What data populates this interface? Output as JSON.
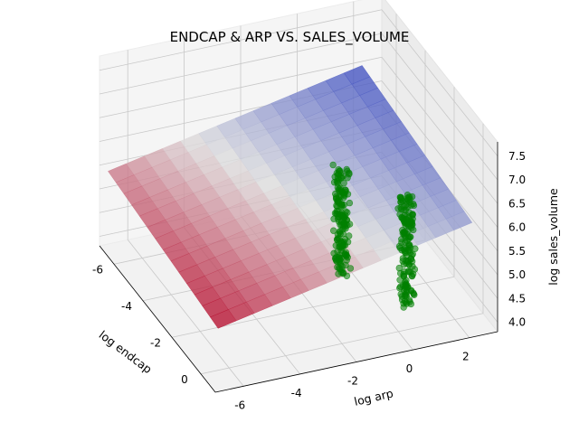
{
  "chart_data": {
    "type": "scatter",
    "title": "ENDCAP & ARP VS. SALES_VOLUME",
    "xlabel": "log endcap",
    "ylabel": "log arp",
    "zlabel": "log sales_volume",
    "x_ticks": [
      "-6",
      "-4",
      "-2",
      "0"
    ],
    "y_ticks": [
      "-6",
      "-4",
      "-2",
      "0",
      "2"
    ],
    "z_ticks": [
      "4.0",
      "4.5",
      "5.0",
      "5.5",
      "6.0",
      "6.5",
      "7.0",
      "7.5"
    ],
    "xlim": [
      -7,
      1
    ],
    "ylim": [
      -7,
      3
    ],
    "zlim": [
      3.8,
      7.8
    ],
    "grid": true,
    "point_color": "#008000",
    "surface_colormap": "coolwarm",
    "fitted_plane": {
      "intercept": 5.9,
      "coef_endcap": -0.05,
      "coef_arp": 0.12
    },
    "clusters": [
      {
        "endcap": 0.0,
        "arp": -2.0,
        "sales_volume_min": 5.3,
        "sales_volume_max": 7.5
      },
      {
        "endcap": 0.0,
        "arp": 0.3,
        "sales_volume_min": 4.3,
        "sales_volume_max": 6.6
      }
    ]
  }
}
